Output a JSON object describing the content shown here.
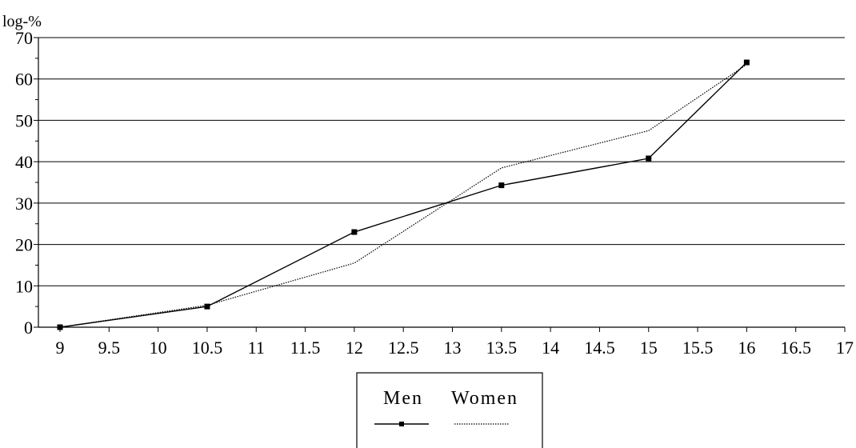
{
  "chart_data": {
    "type": "line",
    "ylabel": "log-%",
    "xlabel": "",
    "xlim": [
      9,
      17
    ],
    "ylim": [
      0,
      70
    ],
    "x_ticks": [
      9,
      9.5,
      10,
      10.5,
      11,
      11.5,
      12,
      12.5,
      13,
      13.5,
      14,
      14.5,
      15,
      15.5,
      16,
      16.5,
      17
    ],
    "y_ticks": [
      0,
      10,
      20,
      30,
      40,
      50,
      60,
      70
    ],
    "grid": "horizontal",
    "legend_position": "bottom-center",
    "series": [
      {
        "name": "Men",
        "x": [
          9,
          10.5,
          12,
          13.5,
          15,
          16
        ],
        "y": [
          0,
          5,
          23,
          34.3,
          40.8,
          64
        ],
        "style": "solid-square-markers",
        "color": "#000000"
      },
      {
        "name": "Women",
        "x": [
          9,
          10.5,
          12,
          13.5,
          15,
          16
        ],
        "y": [
          0,
          5.3,
          15.5,
          38.5,
          47.5,
          63.5
        ],
        "style": "dotted",
        "color": "#000000"
      }
    ]
  }
}
